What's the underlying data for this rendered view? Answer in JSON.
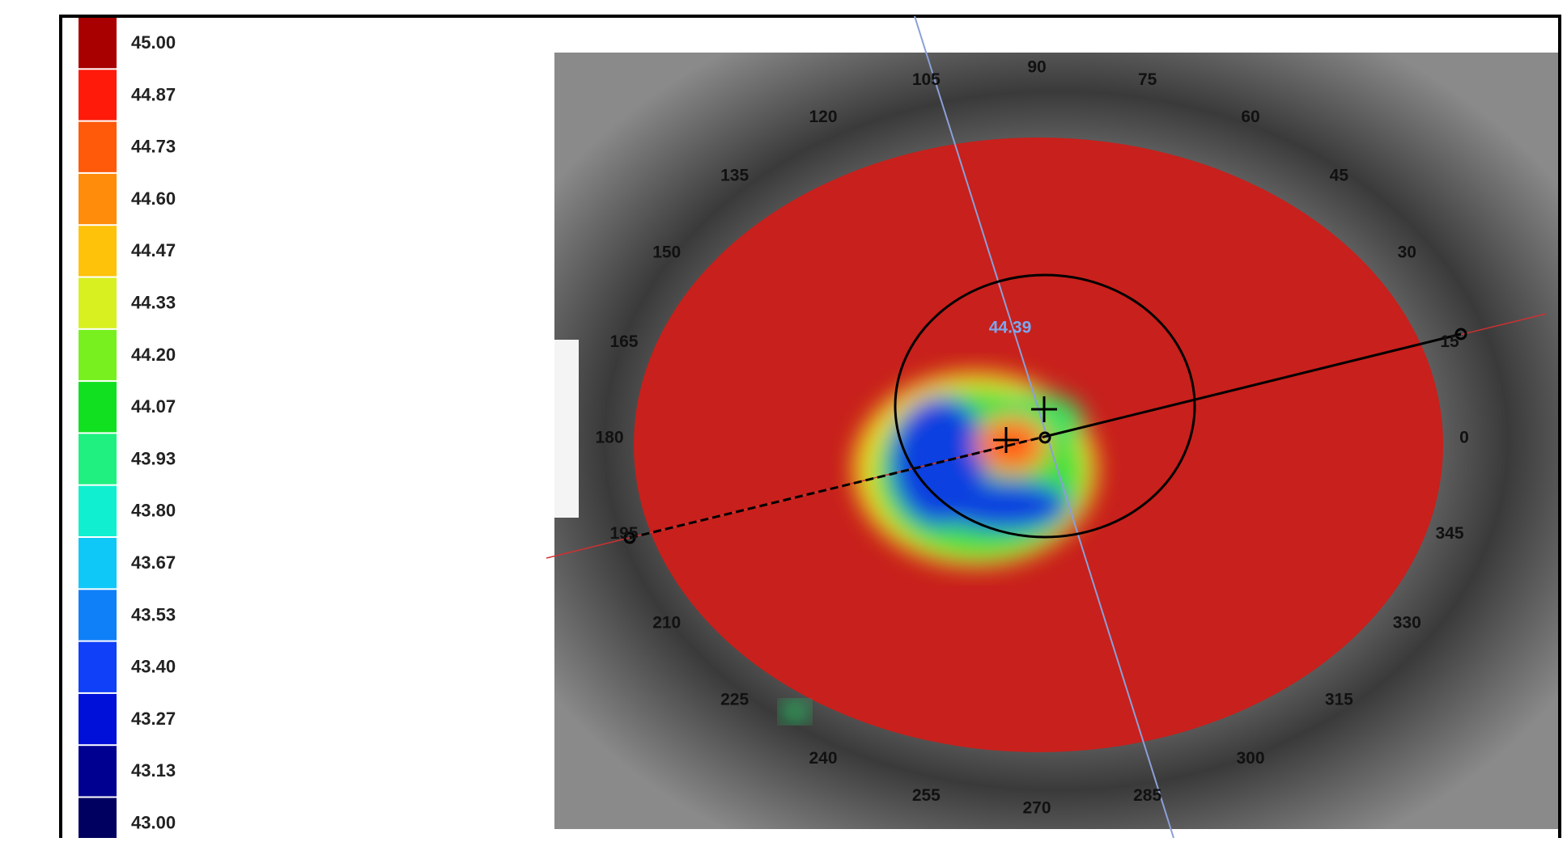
{
  "color_scale": {
    "levels": [
      {
        "label": "45.00",
        "color": "#a80000"
      },
      {
        "label": "44.87",
        "color": "#ff1a0a"
      },
      {
        "label": "44.73",
        "color": "#ff5a0a"
      },
      {
        "label": "44.60",
        "color": "#ff8c0a"
      },
      {
        "label": "44.47",
        "color": "#ffc20a"
      },
      {
        "label": "44.33",
        "color": "#d8f020"
      },
      {
        "label": "44.20",
        "color": "#78f020"
      },
      {
        "label": "44.07",
        "color": "#10e020"
      },
      {
        "label": "43.93",
        "color": "#20f080"
      },
      {
        "label": "43.80",
        "color": "#10f0d0"
      },
      {
        "label": "43.67",
        "color": "#10c8f8"
      },
      {
        "label": "43.53",
        "color": "#1080f8"
      },
      {
        "label": "43.40",
        "color": "#1040f8"
      },
      {
        "label": "43.27",
        "color": "#0010d8"
      },
      {
        "label": "43.13",
        "color": "#000090"
      },
      {
        "label": "43.00",
        "color": "#000060"
      }
    ]
  },
  "angle_labels": [
    "0",
    "15",
    "30",
    "45",
    "60",
    "75",
    "90",
    "105",
    "120",
    "135",
    "150",
    "165",
    "180",
    "195",
    "210",
    "225",
    "240",
    "255",
    "270",
    "285",
    "300",
    "315",
    "330",
    "345"
  ],
  "annotations": {
    "central_value": "44.39"
  }
}
